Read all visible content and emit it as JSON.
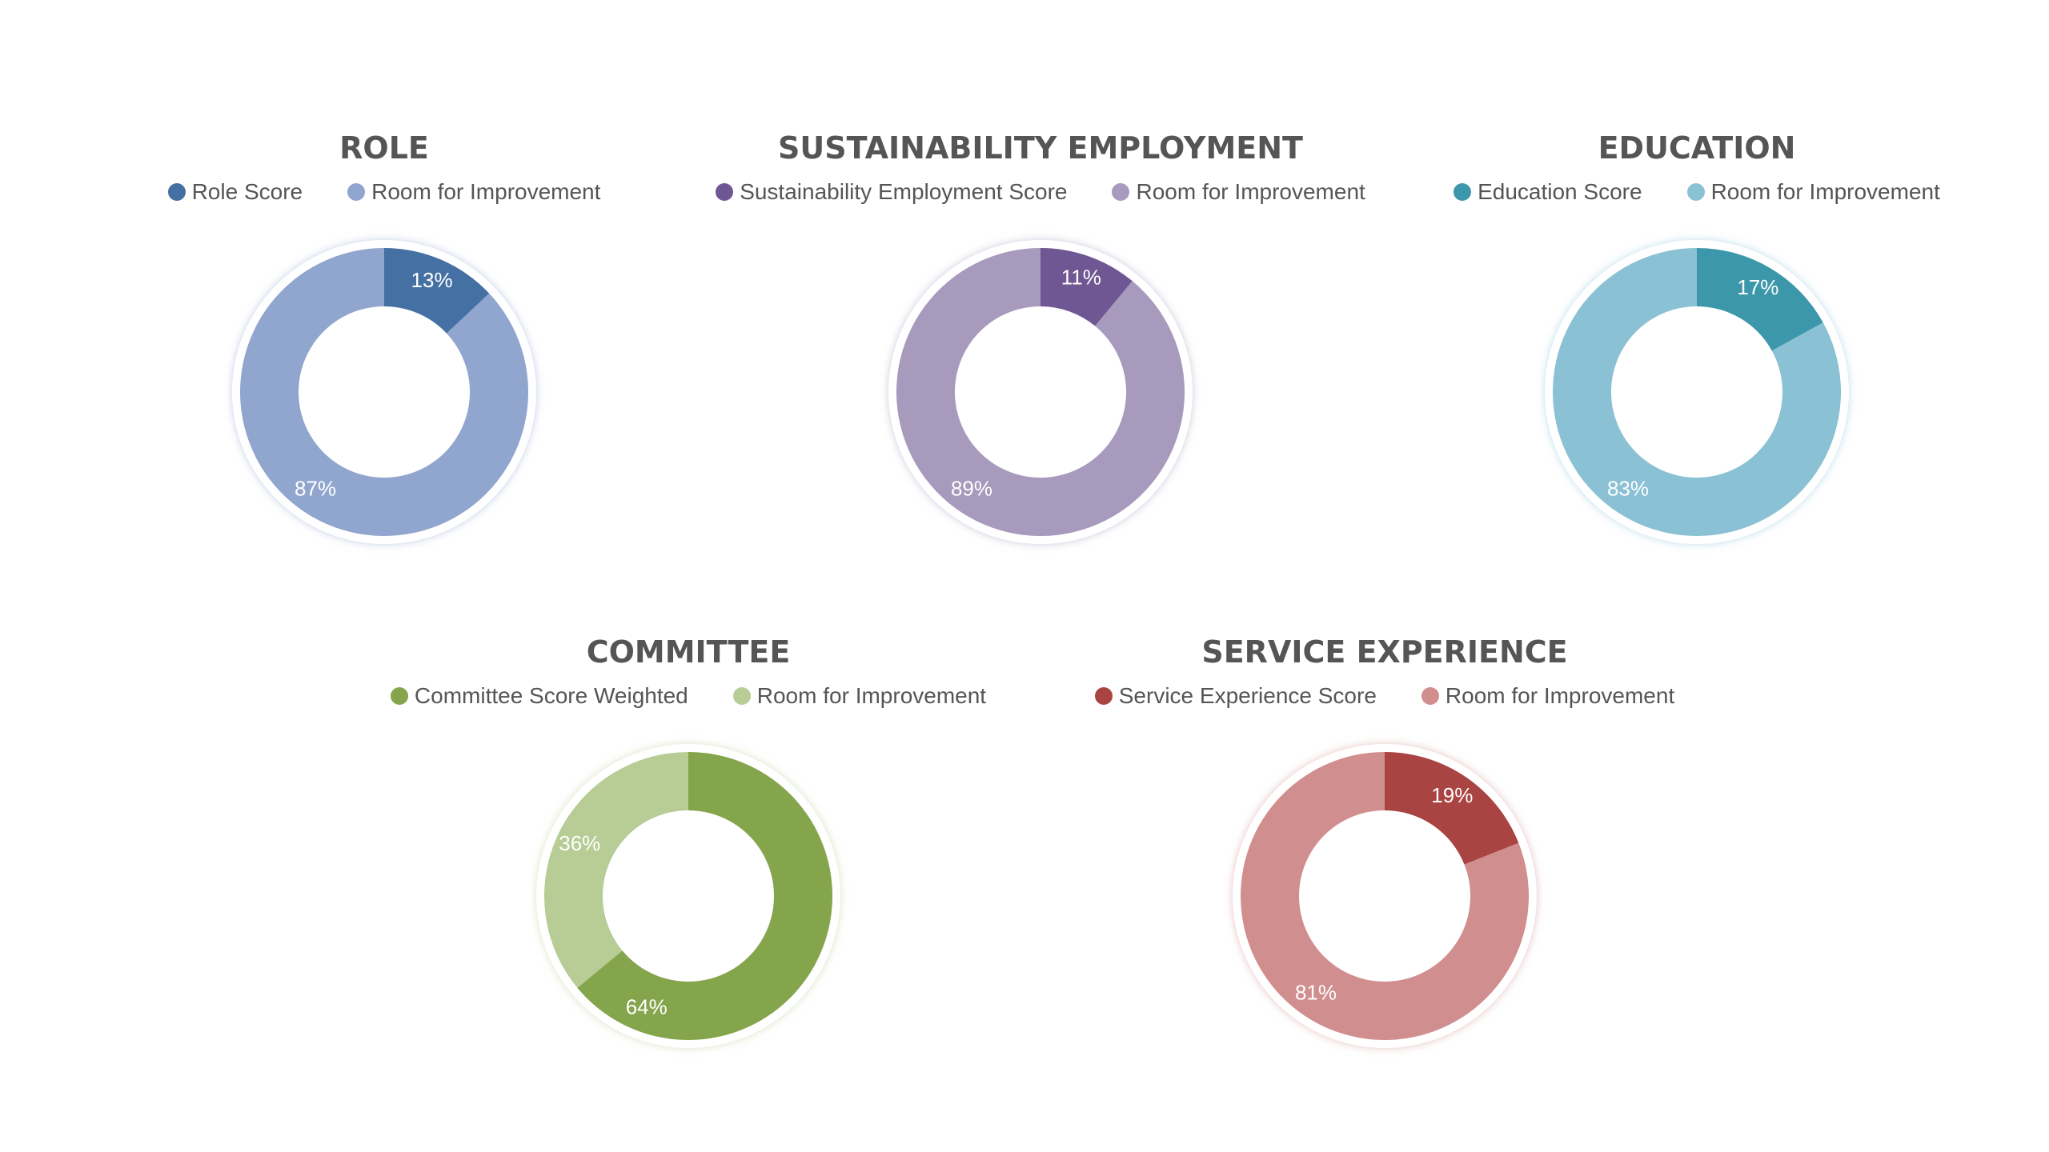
{
  "chart_data": [
    {
      "type": "pie",
      "title": "ROLE",
      "categories": [
        "Role Score",
        "Room for Improvement"
      ],
      "values": [
        13,
        87
      ],
      "value_labels": [
        "13%",
        "87%"
      ],
      "colors": [
        "#4470a3",
        "#91a6ce"
      ],
      "legend_position": "top"
    },
    {
      "type": "pie",
      "title": "SUSTAINABILITY EMPLOYMENT",
      "categories": [
        "Sustainability Employment Score",
        "Room for Improvement"
      ],
      "values": [
        11,
        89
      ],
      "value_labels": [
        "11%",
        "89%"
      ],
      "colors": [
        "#6f5793",
        "#a79abd"
      ],
      "legend_position": "top"
    },
    {
      "type": "pie",
      "title": "EDUCATION",
      "categories": [
        "Education Score",
        "Room for Improvement"
      ],
      "values": [
        17,
        83
      ],
      "value_labels": [
        "17%",
        "83%"
      ],
      "colors": [
        "#3c97ab",
        "#8bc1d4"
      ],
      "legend_position": "top"
    },
    {
      "type": "pie",
      "title": "COMMITTEE",
      "categories": [
        "Committee Score Weighted",
        "Room for Improvement"
      ],
      "values": [
        64,
        36
      ],
      "value_labels": [
        "64%",
        "36%"
      ],
      "colors": [
        "#85a54d",
        "#b7cd95"
      ],
      "legend_position": "top"
    },
    {
      "type": "pie",
      "title": "SERVICE EXPERIENCE",
      "categories": [
        "Service Experience Score",
        "Room for Improvement"
      ],
      "values": [
        19,
        81
      ],
      "value_labels": [
        "19%",
        "81%"
      ],
      "colors": [
        "#a94442",
        "#d18e8f"
      ],
      "legend_position": "top"
    }
  ]
}
